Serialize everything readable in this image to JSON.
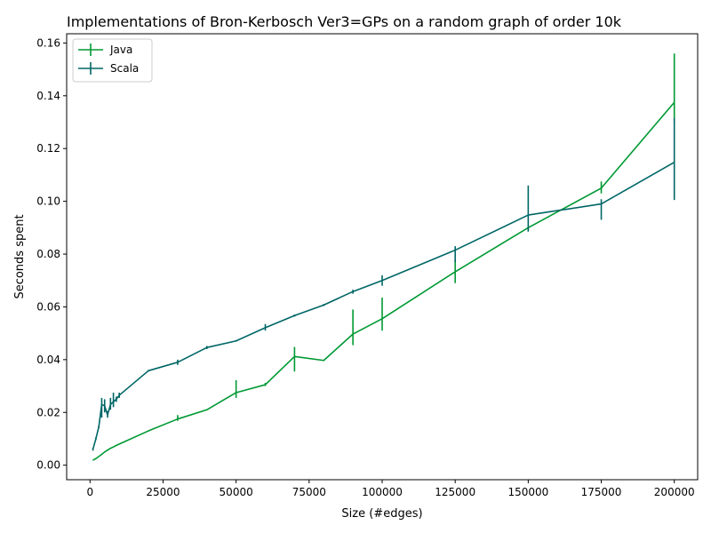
{
  "chart_data": {
    "type": "line",
    "title": "Implementations of Bron-Kerbosch Ver3=GPs on a random graph of order 10k",
    "xlabel": "Size (#edges)",
    "ylabel": "Seconds spent",
    "xlim": [
      -8000,
      208000
    ],
    "ylim": [
      -0.0055,
      0.1635
    ],
    "xticks": [
      0,
      25000,
      50000,
      75000,
      100000,
      125000,
      150000,
      175000,
      200000
    ],
    "xtick_labels": [
      "0",
      "25000",
      "50000",
      "75000",
      "100000",
      "125000",
      "150000",
      "175000",
      "200000"
    ],
    "yticks": [
      0.0,
      0.02,
      0.04,
      0.06,
      0.08,
      0.1,
      0.12,
      0.14,
      0.16
    ],
    "ytick_labels": [
      "0.00",
      "0.02",
      "0.04",
      "0.06",
      "0.08",
      "0.10",
      "0.12",
      "0.14",
      "0.16"
    ],
    "grid": false,
    "legend_position": "upper-left",
    "series": [
      {
        "name": "Java",
        "color": "#009933",
        "x": [
          1000,
          2000,
          3000,
          4000,
          5000,
          6000,
          7000,
          8000,
          9000,
          10000,
          20000,
          30000,
          40000,
          50000,
          60000,
          70000,
          80000,
          90000,
          100000,
          125000,
          150000,
          175000,
          200000
        ],
        "y": [
          0.0019,
          0.0025,
          0.0033,
          0.0041,
          0.005,
          0.0057,
          0.0064,
          0.0069,
          0.0075,
          0.008,
          0.013,
          0.0175,
          0.021,
          0.0275,
          0.0305,
          0.0412,
          0.0397,
          0.0497,
          0.0555,
          0.0733,
          0.09,
          0.105,
          0.1375
        ],
        "ylo": [
          0.0018,
          0.0024,
          0.0032,
          0.004,
          0.0049,
          0.0056,
          0.0063,
          0.0068,
          0.0074,
          0.0079,
          0.0128,
          0.0168,
          0.0208,
          0.0255,
          0.03,
          0.0355,
          0.0395,
          0.0455,
          0.051,
          0.069,
          0.089,
          0.103,
          0.13
        ],
        "yhi": [
          0.002,
          0.0026,
          0.0034,
          0.0042,
          0.0051,
          0.0059,
          0.0066,
          0.0071,
          0.0076,
          0.0081,
          0.0132,
          0.019,
          0.0212,
          0.0322,
          0.0312,
          0.0448,
          0.0399,
          0.059,
          0.0635,
          0.0778,
          0.0905,
          0.1075,
          0.156
        ]
      },
      {
        "name": "Scala",
        "color": "#006666",
        "x": [
          1000,
          2000,
          3000,
          4000,
          5000,
          6000,
          7000,
          8000,
          9000,
          10000,
          20000,
          30000,
          40000,
          50000,
          60000,
          70000,
          80000,
          90000,
          100000,
          125000,
          150000,
          175000,
          200000
        ],
        "y": [
          0.006,
          0.01,
          0.0145,
          0.023,
          0.0225,
          0.019,
          0.023,
          0.024,
          0.025,
          0.0265,
          0.0358,
          0.039,
          0.0446,
          0.0471,
          0.0521,
          0.0567,
          0.0607,
          0.0658,
          0.07,
          0.0815,
          0.0948,
          0.099,
          0.1148
        ],
        "ylo": [
          0.0055,
          0.0095,
          0.014,
          0.018,
          0.02,
          0.018,
          0.021,
          0.022,
          0.024,
          0.0255,
          0.0355,
          0.038,
          0.044,
          0.0468,
          0.051,
          0.0563,
          0.0603,
          0.065,
          0.068,
          0.077,
          0.0885,
          0.093,
          0.1005
        ],
        "yhi": [
          0.0065,
          0.0105,
          0.015,
          0.0255,
          0.025,
          0.0205,
          0.0255,
          0.0275,
          0.026,
          0.0275,
          0.0361,
          0.04,
          0.0452,
          0.0474,
          0.0535,
          0.0571,
          0.0611,
          0.0665,
          0.072,
          0.083,
          0.106,
          0.1008,
          0.1315
        ]
      }
    ]
  }
}
